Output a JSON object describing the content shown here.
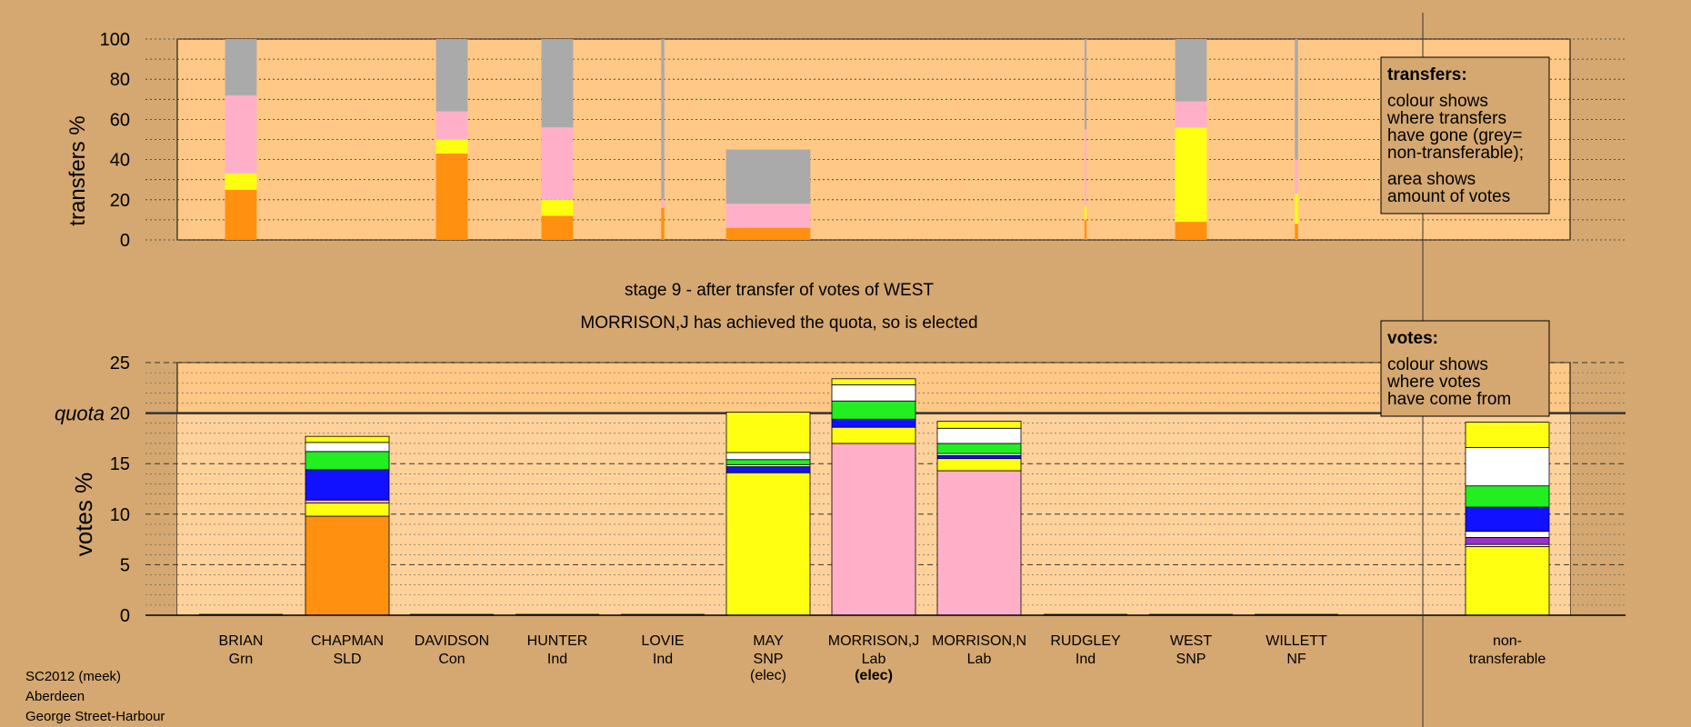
{
  "stage_title": "stage 9 - after transfer of votes of WEST",
  "stage_subtitle": "MORRISON,J has achieved the quota, so is elected",
  "footer": [
    "SC2012 (meek)",
    "Aberdeen",
    "George Street-Harbour"
  ],
  "legend_transfers": {
    "title": "transfers:",
    "lines1": [
      "colour shows",
      "where transfers",
      "have gone (grey=",
      "non-transferable);"
    ],
    "lines2": [
      "area shows",
      "amount of votes"
    ]
  },
  "legend_votes": {
    "title": "votes:",
    "lines": [
      "colour shows",
      "where votes",
      "have come from"
    ]
  },
  "colors": {
    "background": "#D4A870",
    "plot_bg": "#FFC886",
    "Grn": "#22EE22",
    "SLD": "#FF9010",
    "Con": "#1111FF",
    "Ind": "#FFFFFF",
    "SNP": "#FFFF11",
    "Lab": "#FFB0C8",
    "NF": "#9933CC",
    "nontransferable": "#AAAAAA"
  },
  "chart_data": [
    {
      "type": "bar",
      "name": "transfers",
      "ylabel": "transfers %",
      "ylim": [
        0,
        100
      ],
      "yticks": [
        0,
        20,
        40,
        60,
        80,
        100
      ],
      "categories": [
        "BRIAN",
        "CHAPMAN",
        "DAVIDSON",
        "HUNTER",
        "LOVIE",
        "MAY",
        "MORRISON,J",
        "MORRISON,N",
        "RUDGLEY",
        "WEST",
        "WILLETT"
      ],
      "bars": [
        {
          "candidate": "BRIAN",
          "width_share": 0.3,
          "segments": [
            {
              "party": "SLD",
              "value": 25
            },
            {
              "party": "SNP",
              "value": 8
            },
            {
              "party": "Lab",
              "value": 39
            },
            {
              "party": "nontransferable",
              "value": 28
            }
          ]
        },
        {
          "candidate": "CHAPMAN",
          "width_share": 0,
          "segments": []
        },
        {
          "candidate": "DAVIDSON",
          "width_share": 0.3,
          "segments": [
            {
              "party": "SLD",
              "value": 43
            },
            {
              "party": "SNP",
              "value": 7
            },
            {
              "party": "Lab",
              "value": 14
            },
            {
              "party": "nontransferable",
              "value": 36
            }
          ]
        },
        {
          "candidate": "HUNTER",
          "width_share": 0.3,
          "segments": [
            {
              "party": "SLD",
              "value": 12
            },
            {
              "party": "SNP",
              "value": 8
            },
            {
              "party": "Lab",
              "value": 36
            },
            {
              "party": "nontransferable",
              "value": 44
            }
          ]
        },
        {
          "candidate": "LOVIE",
          "width_share": 0.03,
          "segments": [
            {
              "party": "SLD",
              "value": 16
            },
            {
              "party": "Lab",
              "value": 4
            },
            {
              "party": "nontransferable",
              "value": 80
            }
          ]
        },
        {
          "candidate": "MAY",
          "width_share": 0.8,
          "segments": [
            {
              "party": "SLD",
              "value": 6
            },
            {
              "party": "Lab",
              "value": 12
            },
            {
              "party": "nontransferable",
              "value": 27
            }
          ]
        },
        {
          "candidate": "MORRISON,J",
          "width_share": 0,
          "segments": []
        },
        {
          "candidate": "MORRISON,N",
          "width_share": 0,
          "segments": []
        },
        {
          "candidate": "RUDGLEY",
          "width_share": 0.02,
          "segments": [
            {
              "party": "SLD",
              "value": 10
            },
            {
              "party": "SNP",
              "value": 7
            },
            {
              "party": "Lab",
              "value": 38
            },
            {
              "party": "nontransferable",
              "value": 45
            }
          ]
        },
        {
          "candidate": "WEST",
          "width_share": 0.3,
          "segments": [
            {
              "party": "SLD",
              "value": 9
            },
            {
              "party": "SNP",
              "value": 47
            },
            {
              "party": "Lab",
              "value": 13
            },
            {
              "party": "nontransferable",
              "value": 31
            }
          ]
        },
        {
          "candidate": "WILLETT",
          "width_share": 0.03,
          "segments": [
            {
              "party": "SLD",
              "value": 8
            },
            {
              "party": "SNP",
              "value": 15
            },
            {
              "party": "Lab",
              "value": 17
            },
            {
              "party": "nontransferable",
              "value": 60
            }
          ]
        }
      ]
    },
    {
      "type": "bar",
      "name": "votes",
      "ylabel": "votes %",
      "ylim": [
        0,
        25
      ],
      "yticks": [
        0,
        5,
        10,
        15,
        20,
        25
      ],
      "quota": 20,
      "quota_label": "quota",
      "categories": [
        "BRIAN",
        "CHAPMAN",
        "DAVIDSON",
        "HUNTER",
        "LOVIE",
        "MAY",
        "MORRISON,J",
        "MORRISON,N",
        "RUDGLEY",
        "WEST",
        "WILLETT",
        "non-transferable"
      ],
      "labels": [
        {
          "name": "BRIAN",
          "party": "Grn",
          "status": ""
        },
        {
          "name": "CHAPMAN",
          "party": "SLD",
          "status": ""
        },
        {
          "name": "DAVIDSON",
          "party": "Con",
          "status": ""
        },
        {
          "name": "HUNTER",
          "party": "Ind",
          "status": ""
        },
        {
          "name": "LOVIE",
          "party": "Ind",
          "status": ""
        },
        {
          "name": "MAY",
          "party": "SNP",
          "status": "(elec)"
        },
        {
          "name": "MORRISON,J",
          "party": "Lab",
          "status": "(elec)"
        },
        {
          "name": "MORRISON,N",
          "party": "Lab",
          "status": ""
        },
        {
          "name": "RUDGLEY",
          "party": "Ind",
          "status": ""
        },
        {
          "name": "WEST",
          "party": "SNP",
          "status": ""
        },
        {
          "name": "WILLETT",
          "party": "NF",
          "status": ""
        },
        {
          "name": "non-",
          "party": "transferable",
          "status": ""
        }
      ],
      "bars": [
        {
          "candidate": "BRIAN",
          "segments": []
        },
        {
          "candidate": "CHAPMAN",
          "segments": [
            {
              "party": "SLD",
              "value": 9.8
            },
            {
              "party": "SNP",
              "value": 1.3
            },
            {
              "party": "Lab",
              "value": 0.3
            },
            {
              "party": "Con",
              "value": 3.0
            },
            {
              "party": "Grn",
              "value": 1.8
            },
            {
              "party": "Ind",
              "value": 0.9
            },
            {
              "party": "SNP",
              "value": 0.6
            }
          ]
        },
        {
          "candidate": "DAVIDSON",
          "segments": []
        },
        {
          "candidate": "HUNTER",
          "segments": []
        },
        {
          "candidate": "LOVIE",
          "segments": []
        },
        {
          "candidate": "MAY",
          "segments": [
            {
              "party": "SNP",
              "value": 14.1
            },
            {
              "party": "Con",
              "value": 0.6
            },
            {
              "party": "Ind",
              "value": 0.2
            },
            {
              "party": "Grn",
              "value": 0.5
            },
            {
              "party": "Ind",
              "value": 0.7
            },
            {
              "party": "SNP",
              "value": 4.0
            }
          ]
        },
        {
          "candidate": "MORRISON,J",
          "segments": [
            {
              "party": "Lab",
              "value": 17.0
            },
            {
              "party": "SNP",
              "value": 1.6
            },
            {
              "party": "Con",
              "value": 0.8
            },
            {
              "party": "Grn",
              "value": 1.8
            },
            {
              "party": "Ind",
              "value": 1.6
            },
            {
              "party": "SNP",
              "value": 0.6
            }
          ]
        },
        {
          "candidate": "MORRISON,N",
          "segments": [
            {
              "party": "Lab",
              "value": 14.3
            },
            {
              "party": "SNP",
              "value": 1.2
            },
            {
              "party": "Con",
              "value": 0.3
            },
            {
              "party": "Ind",
              "value": 0.2
            },
            {
              "party": "Grn",
              "value": 1.0
            },
            {
              "party": "Ind",
              "value": 1.5
            },
            {
              "party": "SNP",
              "value": 0.7
            }
          ]
        },
        {
          "candidate": "RUDGLEY",
          "segments": []
        },
        {
          "candidate": "WEST",
          "segments": []
        },
        {
          "candidate": "WILLETT",
          "segments": []
        },
        {
          "candidate": "non-transferable",
          "segments": [
            {
              "party": "SNP",
              "value": 6.8
            },
            {
              "party": "Ind",
              "value": 0.2
            },
            {
              "party": "NF",
              "value": 0.7
            },
            {
              "party": "Ind",
              "value": 0.6
            },
            {
              "party": "Con",
              "value": 2.4
            },
            {
              "party": "Grn",
              "value": 2.1
            },
            {
              "party": "Ind",
              "value": 3.8
            },
            {
              "party": "SNP",
              "value": 2.5
            }
          ]
        }
      ]
    }
  ]
}
